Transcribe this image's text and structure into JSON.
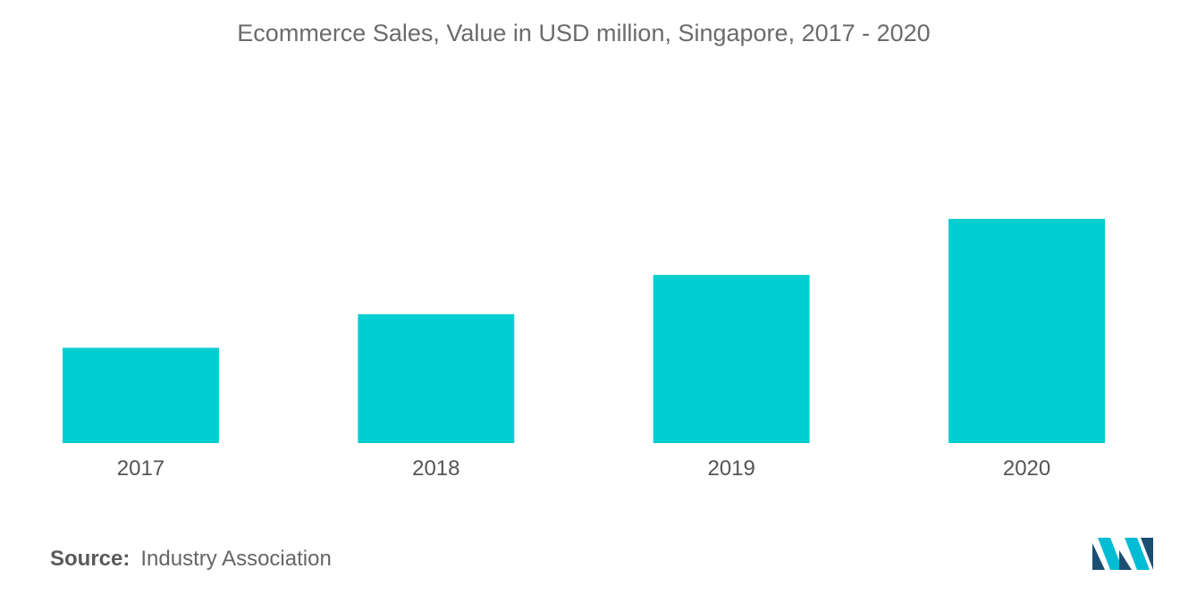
{
  "chart_data": {
    "type": "bar",
    "title": "Ecommerce Sales, Value in USD million, Singapore, 2017 - 2020",
    "categories": [
      "2017",
      "2018",
      "2019",
      "2020"
    ],
    "values": [
      1.7,
      2.3,
      3.0,
      4.0
    ],
    "ylim": [
      0,
      4.4
    ],
    "bar_color": "#00ced1",
    "axis_visible": false,
    "grid": false,
    "legend": "none"
  },
  "source": {
    "label": "Source:",
    "text": "Industry Association"
  },
  "logo": {
    "icon": "mordor-intelligence-logo",
    "colors": [
      "#1b4f72",
      "#00bcd4"
    ]
  }
}
